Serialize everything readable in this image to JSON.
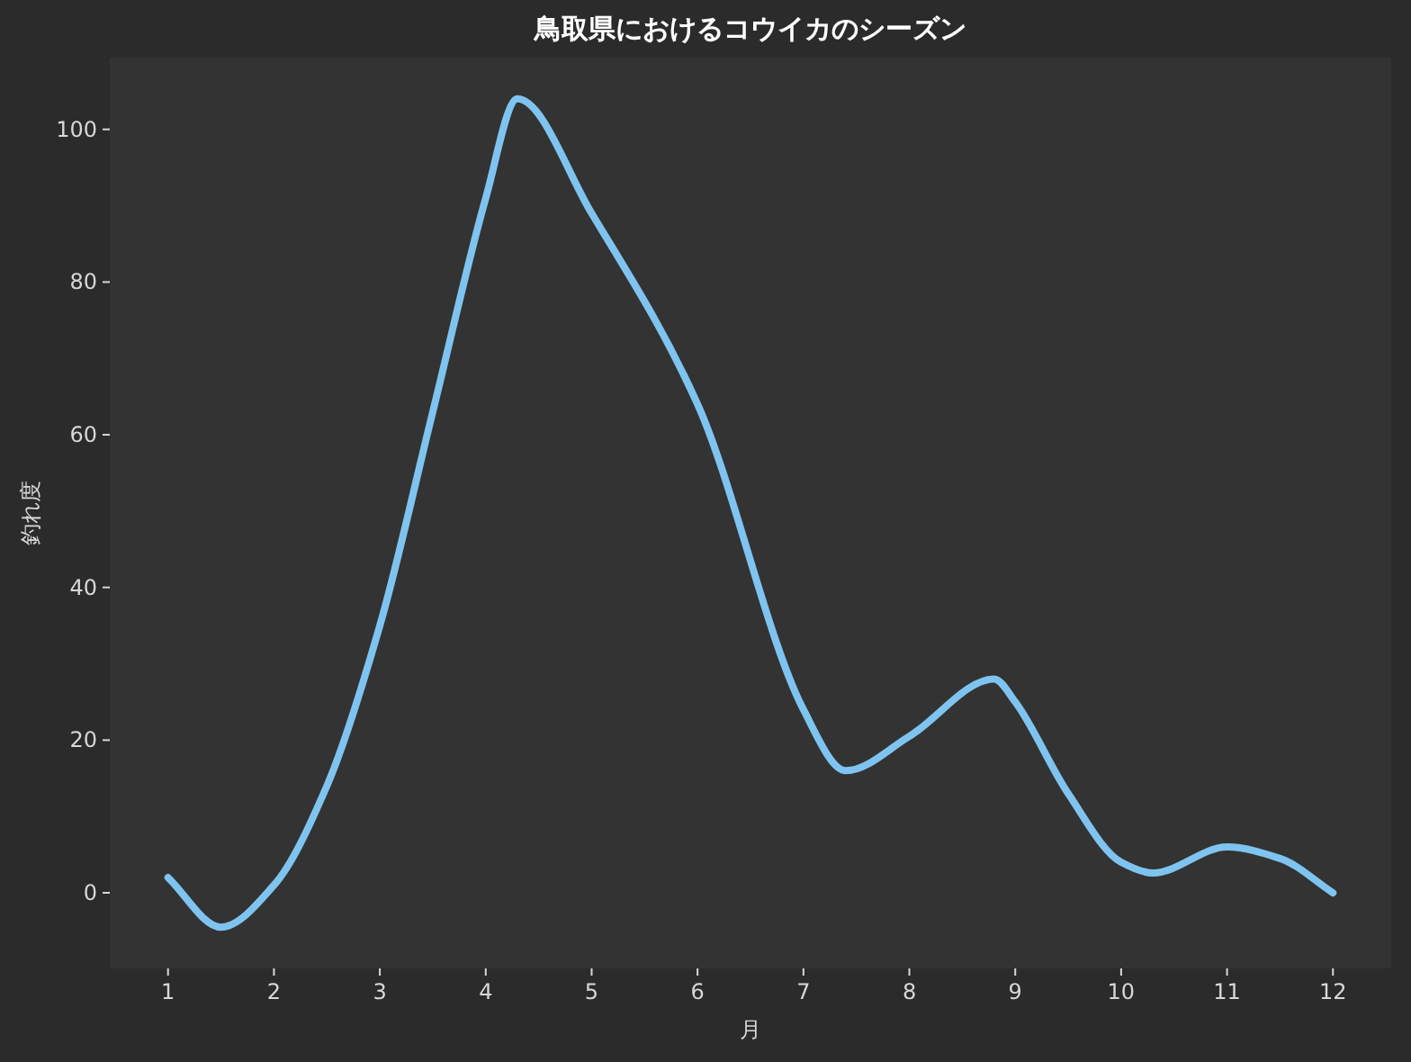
{
  "chart_data": {
    "type": "line",
    "title": "鳥取県におけるコウイカのシーズン",
    "xlabel": "月",
    "ylabel": "釣れ度",
    "x": [
      1,
      1.5,
      2,
      2.5,
      3,
      3.5,
      4,
      4.3,
      5,
      6,
      7,
      7.4,
      8,
      8.8,
      9,
      9.5,
      10,
      10.3,
      11,
      11.5,
      12
    ],
    "series": [
      {
        "color": "#7fc4f0",
        "values": [
          2,
          -4.5,
          1,
          14,
          35,
          63,
          91,
          104,
          89,
          64,
          24,
          16,
          20.5,
          28,
          25,
          13,
          4,
          2.6,
          6,
          4.5,
          0
        ]
      }
    ],
    "xlim": [
      0.45,
      12.55
    ],
    "ylim": [
      -9.9,
      109.4
    ],
    "xticks": [
      1,
      2,
      3,
      4,
      5,
      6,
      7,
      8,
      9,
      10,
      11,
      12
    ],
    "yticks": [
      0,
      20,
      40,
      60,
      80,
      100
    ],
    "grid": false,
    "marker": "none",
    "line_style": "solid"
  }
}
